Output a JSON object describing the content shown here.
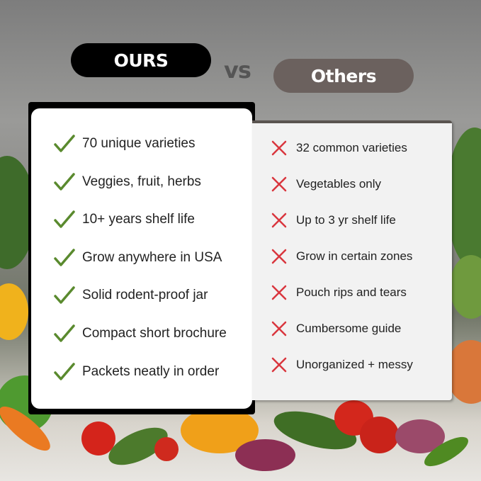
{
  "header": {
    "ours_label": "OURS",
    "vs_label": "vs",
    "others_label": "Others"
  },
  "ours": {
    "icon": "check-icon",
    "icon_color": "#5a8a2e",
    "items": [
      "70 unique varieties",
      "Veggies, fruit, herbs",
      "10+ years shelf life",
      "Grow anywhere in USA",
      "Solid rodent-proof jar",
      "Compact short brochure",
      "Packets neatly in order"
    ]
  },
  "others": {
    "icon": "x-icon",
    "icon_color": "#d9363e",
    "items": [
      "32 common varieties",
      "Vegetables only",
      "Up to 3 yr shelf life",
      "Grow in certain zones",
      "Pouch rips and tears",
      "Cumbersome guide",
      "Unorganized + messy"
    ]
  }
}
